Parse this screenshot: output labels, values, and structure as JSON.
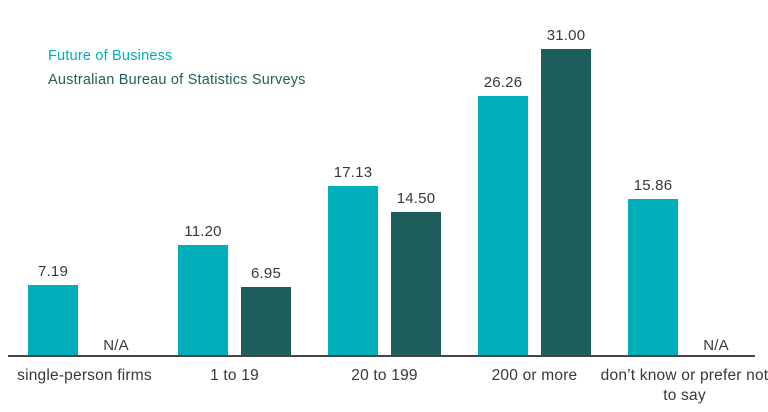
{
  "chart_data": {
    "type": "bar",
    "title": "",
    "categories": [
      "single-person firms",
      "1 to 19",
      "20 to 199",
      "200 or more",
      "don’t know or prefer not to say"
    ],
    "series": [
      {
        "name": "Future of Business",
        "color": "#00AFB9",
        "values": [
          7.19,
          11.2,
          17.13,
          26.26,
          15.86
        ],
        "value_labels": [
          "7.19",
          "11.20",
          "17.13",
          "26.26",
          "15.86"
        ]
      },
      {
        "name": "Australian Bureau of Statistics Surveys",
        "color": "#1E5F5D",
        "values": [
          null,
          6.95,
          14.5,
          31.0,
          null
        ],
        "value_labels": [
          "N/A",
          "6.95",
          "14.50",
          "31.00",
          "N/A"
        ]
      }
    ],
    "na_label": "N/A",
    "ylim": [
      0,
      31
    ],
    "grid": false,
    "legend_position": "top-left",
    "axis_color": "#454545",
    "label_color": "#383838",
    "background": "#ffffff"
  }
}
